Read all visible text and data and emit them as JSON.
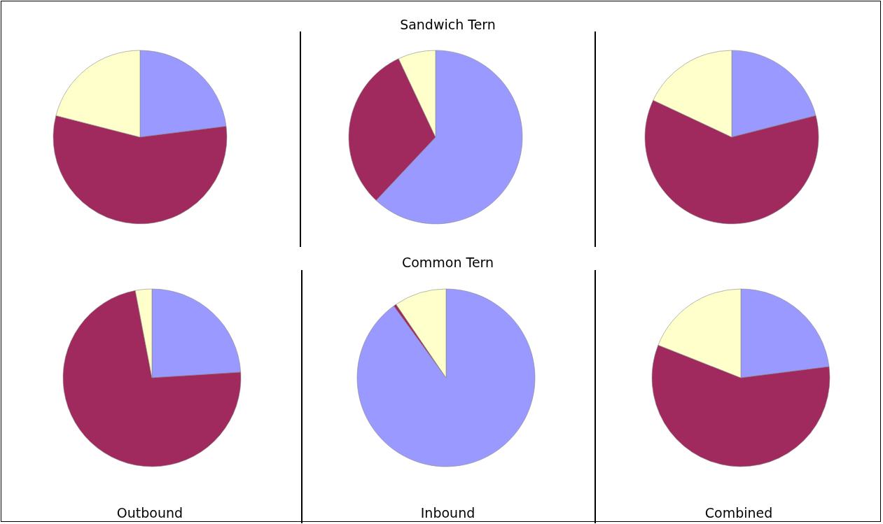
{
  "chart_data": [
    {
      "type": "pie",
      "categories": [
        null,
        null,
        null
      ],
      "values": [
        23,
        56,
        21
      ],
      "colors": [
        "#9999ff",
        "#a0295e",
        "#ffffcc"
      ]
    },
    {
      "type": "pie",
      "title": "Sandwich Tern",
      "categories": [
        null,
        null,
        null
      ],
      "values": [
        62,
        31,
        7
      ],
      "colors": [
        "#9999ff",
        "#a0295e",
        "#ffffcc"
      ]
    },
    {
      "type": "pie",
      "categories": [
        null,
        null,
        null
      ],
      "values": [
        21,
        61,
        18
      ],
      "colors": [
        "#9999ff",
        "#a0295e",
        "#ffffcc"
      ]
    },
    {
      "type": "pie",
      "xlabel": "Outbound",
      "categories": [
        null,
        null,
        null
      ],
      "values": [
        24,
        73,
        3
      ],
      "colors": [
        "#9999ff",
        "#a0295e",
        "#ffffcc"
      ]
    },
    {
      "type": "pie",
      "title": "Common Tern",
      "xlabel": "Inbound",
      "categories": [
        null,
        null,
        null
      ],
      "values": [
        90,
        0.5,
        9.5
      ],
      "colors": [
        "#9999ff",
        "#a0295e",
        "#ffffcc"
      ]
    },
    {
      "type": "pie",
      "xlabel": "Combined",
      "categories": [
        null,
        null,
        null
      ],
      "values": [
        23,
        58,
        19
      ],
      "colors": [
        "#9999ff",
        "#a0295e",
        "#ffffcc"
      ]
    }
  ]
}
